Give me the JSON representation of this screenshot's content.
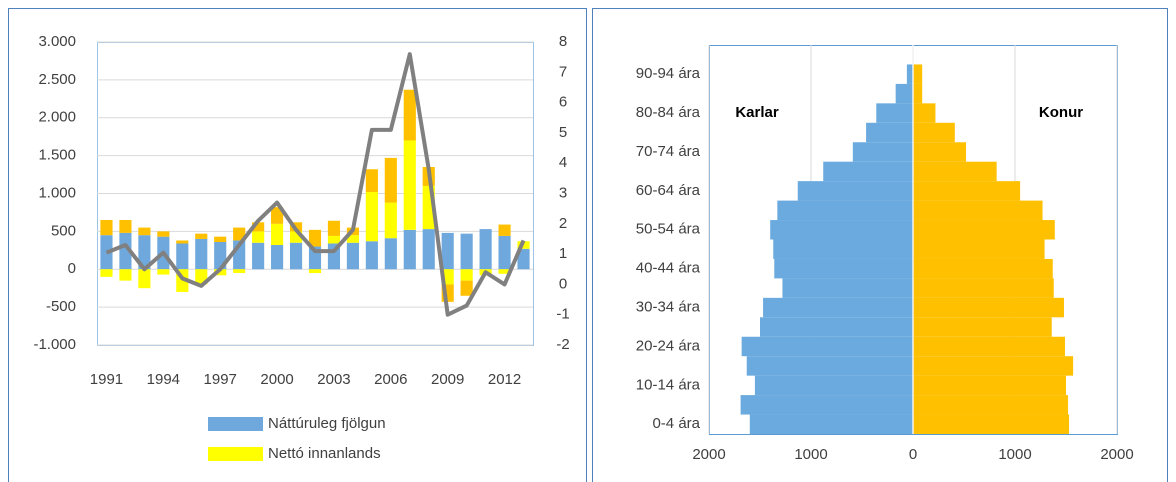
{
  "chart_data": [
    {
      "type": "bar",
      "stacked": true,
      "categories": [
        1991,
        null,
        null,
        1994,
        null,
        null,
        1997,
        null,
        null,
        2000,
        null,
        null,
        2003,
        null,
        null,
        2006,
        null,
        null,
        2009,
        null,
        null,
        2012,
        null
      ],
      "series": [
        {
          "name": "Náttúruleg fjölgun",
          "color": "#6fa8dc",
          "values": [
            450,
            480,
            450,
            430,
            340,
            400,
            360,
            380,
            350,
            320,
            350,
            300,
            340,
            350,
            370,
            410,
            520,
            530,
            480,
            470,
            530,
            440,
            270
          ]
        },
        {
          "name": "Nettó innanlands",
          "color": "#ffff00",
          "values": [
            -100,
            -150,
            -250,
            -70,
            -300,
            -200,
            -80,
            -50,
            150,
            280,
            150,
            -50,
            100,
            100,
            650,
            470,
            1180,
            570,
            -200,
            -150,
            -80,
            -60,
            100
          ]
        },
        {
          "color": "#ffc000",
          "values": [
            200,
            170,
            100,
            70,
            40,
            70,
            70,
            170,
            120,
            220,
            120,
            220,
            200,
            100,
            300,
            590,
            670,
            250,
            -230,
            -200,
            0,
            150,
            0
          ]
        },
        {
          "type": "line",
          "axis": "y2",
          "color": "#808080",
          "values": [
            1.05,
            1.3,
            0.5,
            1.05,
            0.2,
            -0.05,
            0.5,
            1.3,
            2.1,
            2.7,
            1.8,
            1.1,
            1.1,
            1.8,
            5.1,
            5.1,
            7.6,
            3.8,
            -1.0,
            -0.7,
            0.4,
            0.0,
            1.45
          ]
        }
      ],
      "ylim": [
        -1000,
        3000
      ],
      "yticks": [
        {
          "value": 3000,
          "label": "3.000"
        },
        {
          "value": 2500,
          "label": "2.500"
        },
        {
          "value": 2000,
          "label": "2.000"
        },
        {
          "value": 1500,
          "label": "1.500"
        },
        {
          "value": 1000,
          "label": "1.000"
        },
        500,
        0,
        -500,
        {
          "value": -1000,
          "label": "-1.000"
        }
      ],
      "y2lim": [
        -2,
        8
      ],
      "y2ticks": [
        8,
        7,
        6,
        5,
        4,
        3,
        2,
        1,
        0,
        -1,
        -2
      ],
      "grid": true,
      "legend": "bottom"
    },
    {
      "type": "pyramid",
      "categories": [
        "0-4 ára",
        null,
        "10-14 ára",
        null,
        "20-24 ára",
        null,
        "30-34 ára",
        null,
        "40-44 ára",
        null,
        "50-54 ára",
        null,
        "60-64 ára",
        null,
        "70-74 ára",
        null,
        "80-84 ára",
        null,
        "90-94 ára"
      ],
      "series": [
        {
          "name": "Karlar",
          "color": "#6aaade",
          "values": [
            -1600,
            -1690,
            -1550,
            -1630,
            -1680,
            -1500,
            -1470,
            -1280,
            -1360,
            -1370,
            -1400,
            -1330,
            -1130,
            -880,
            -590,
            -460,
            -360,
            -170,
            -60
          ]
        },
        {
          "name": "Konur",
          "color": "#ffc000",
          "values": [
            1530,
            1520,
            1500,
            1570,
            1490,
            1360,
            1480,
            1380,
            1370,
            1290,
            1390,
            1270,
            1050,
            820,
            520,
            410,
            220,
            90,
            90
          ]
        }
      ],
      "xlim": [
        -2000,
        2000
      ],
      "xticks": [
        {
          "value": -2000,
          "label": "2000"
        },
        {
          "value": -1000,
          "label": "1000"
        },
        0,
        1000,
        2000
      ],
      "grid": true
    }
  ]
}
